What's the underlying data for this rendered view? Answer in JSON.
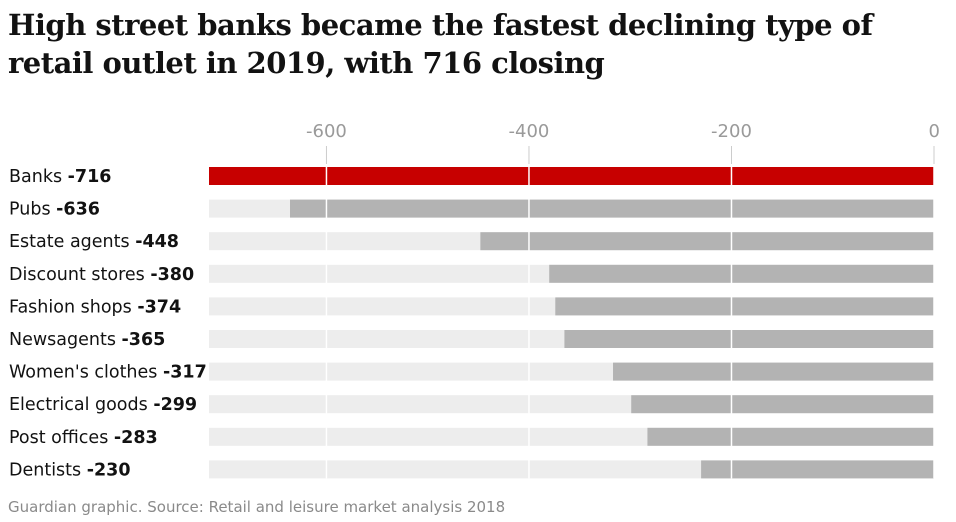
{
  "title": "High street banks became the fastest declining type of retail outlet in 2019, with 716 closing",
  "source": "Guardian graphic. Source: Retail and leisure market analysis 2018",
  "colors": {
    "highlight": "#c70000",
    "bar": "#b3b3b3",
    "track": "#ededed",
    "grid": "#ffffff"
  },
  "chart_data": {
    "type": "bar",
    "orientation": "horizontal",
    "categories": [
      "Banks",
      "Pubs",
      "Estate agents",
      "Discount stores",
      "Fashion shops",
      "Newsagents",
      "Women's clothes",
      "Electrical goods",
      "Post offices",
      "Dentists"
    ],
    "values": [
      -716,
      -636,
      -448,
      -380,
      -374,
      -365,
      -317,
      -299,
      -283,
      -230
    ],
    "value_labels": [
      "-716",
      "-636",
      "-448",
      "-380",
      "-374",
      "-365",
      "-317",
      "-299",
      "-283",
      "-230"
    ],
    "highlight_index": 0,
    "xlim": [
      -716,
      0
    ],
    "xticks": [
      -600,
      -400,
      -200,
      0
    ],
    "xtick_labels": [
      "-600",
      "-400",
      "-200",
      "0"
    ],
    "axis_position": "top"
  }
}
